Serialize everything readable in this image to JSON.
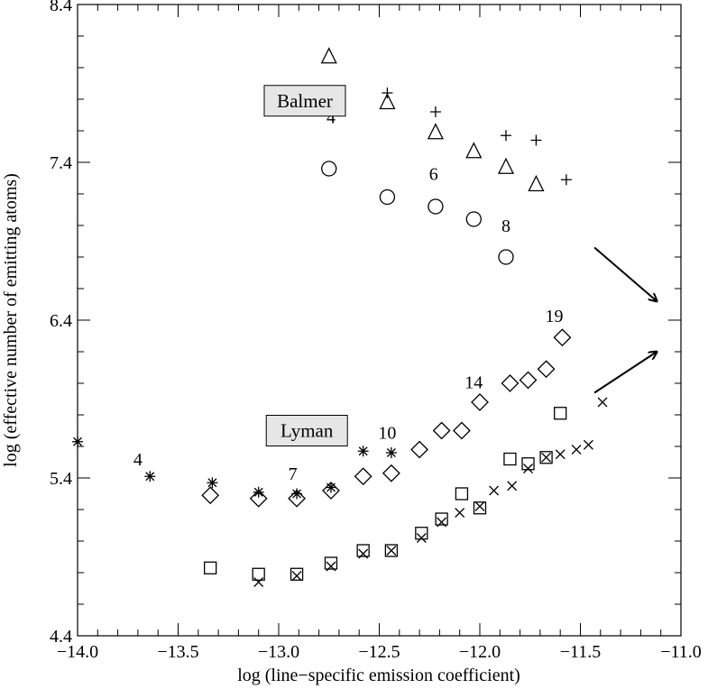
{
  "chart_data": {
    "type": "scatter",
    "title": "",
    "xlabel": "log (line−specific emission coefficient)",
    "ylabel": "log (effective number of emitting atoms)",
    "xlim": [
      -14.0,
      -11.0
    ],
    "ylim": [
      4.4,
      8.4
    ],
    "x_ticks": [
      -14.0,
      -13.5,
      -13.0,
      -12.5,
      -12.0,
      -11.5,
      -11.0
    ],
    "x_tick_labels": [
      "−14.0",
      "−13.5",
      "−13.0",
      "−12.5",
      "−12.0",
      "−11.5",
      "−11.0"
    ],
    "y_ticks": [
      4.4,
      5.4,
      6.4,
      7.4,
      8.4
    ],
    "y_tick_labels": [
      "4.4",
      "5.4",
      "6.4",
      "7.4",
      "8.4"
    ],
    "grid": false,
    "legend": "none",
    "boxed_labels": [
      {
        "text": "Balmer",
        "x": -12.87,
        "y": 7.79
      },
      {
        "text": "Lyman",
        "x": -12.86,
        "y": 5.7
      }
    ],
    "annotations": [
      {
        "text": "4",
        "x": -12.74,
        "y": 7.69
      },
      {
        "text": "6",
        "x": -12.23,
        "y": 7.33
      },
      {
        "text": "8",
        "x": -11.87,
        "y": 7.0
      },
      {
        "text": "4",
        "x": -13.7,
        "y": 5.52
      },
      {
        "text": "7",
        "x": -12.93,
        "y": 5.43
      },
      {
        "text": "10",
        "x": -12.46,
        "y": 5.69
      },
      {
        "text": "14",
        "x": -12.03,
        "y": 6.01
      },
      {
        "text": "19",
        "x": -11.63,
        "y": 6.43
      }
    ],
    "arrows": [
      {
        "from": [
          -11.43,
          6.86
        ],
        "to": [
          -11.12,
          6.52
        ]
      },
      {
        "from": [
          -11.43,
          5.94
        ],
        "to": [
          -11.12,
          6.2
        ]
      }
    ],
    "series": [
      {
        "marker": "triangle",
        "points": [
          [
            -12.75,
            8.07
          ],
          [
            -12.46,
            7.78
          ],
          [
            -12.22,
            7.59
          ],
          [
            -12.03,
            7.47
          ],
          [
            -11.87,
            7.37
          ],
          [
            -11.72,
            7.26
          ]
        ]
      },
      {
        "marker": "plus",
        "points": [
          [
            -12.46,
            7.84
          ],
          [
            -12.22,
            7.72
          ],
          [
            -11.87,
            7.57
          ],
          [
            -11.72,
            7.54
          ],
          [
            -11.57,
            7.29
          ]
        ]
      },
      {
        "marker": "circle",
        "points": [
          [
            -12.75,
            7.36
          ],
          [
            -12.46,
            7.18
          ],
          [
            -12.22,
            7.12
          ],
          [
            -12.03,
            7.04
          ],
          [
            -11.87,
            6.8
          ]
        ]
      },
      {
        "marker": "asterisk",
        "points": [
          [
            -14.0,
            5.63
          ],
          [
            -13.64,
            5.41
          ],
          [
            -13.33,
            5.37
          ],
          [
            -13.1,
            5.31
          ],
          [
            -12.91,
            5.3
          ],
          [
            -12.74,
            5.34
          ],
          [
            -12.58,
            5.57
          ],
          [
            -12.44,
            5.56
          ]
        ]
      },
      {
        "marker": "diamond",
        "points": [
          [
            -13.34,
            5.29
          ],
          [
            -13.1,
            5.27
          ],
          [
            -12.91,
            5.27
          ],
          [
            -12.74,
            5.32
          ],
          [
            -12.58,
            5.41
          ],
          [
            -12.44,
            5.43
          ],
          [
            -12.3,
            5.58
          ],
          [
            -12.19,
            5.7
          ],
          [
            -12.09,
            5.7
          ],
          [
            -12.0,
            5.88
          ],
          [
            -11.85,
            6.0
          ],
          [
            -11.76,
            6.02
          ],
          [
            -11.67,
            6.09
          ],
          [
            -11.59,
            6.29
          ]
        ]
      },
      {
        "marker": "square",
        "points": [
          [
            -13.34,
            4.83
          ],
          [
            -13.1,
            4.79
          ],
          [
            -12.91,
            4.79
          ],
          [
            -12.74,
            4.86
          ],
          [
            -12.58,
            4.94
          ],
          [
            -12.44,
            4.94
          ],
          [
            -12.29,
            5.05
          ],
          [
            -12.19,
            5.14
          ],
          [
            -12.09,
            5.3
          ],
          [
            -12.0,
            5.21
          ],
          [
            -11.85,
            5.52
          ],
          [
            -11.76,
            5.49
          ],
          [
            -11.67,
            5.53
          ],
          [
            -11.6,
            5.81
          ]
        ]
      },
      {
        "marker": "x",
        "points": [
          [
            -13.1,
            4.74
          ],
          [
            -12.91,
            4.78
          ],
          [
            -12.74,
            4.84
          ],
          [
            -12.58,
            4.92
          ],
          [
            -12.44,
            4.94
          ],
          [
            -12.29,
            5.02
          ],
          [
            -12.19,
            5.12
          ],
          [
            -12.1,
            5.18
          ],
          [
            -12.0,
            5.22
          ],
          [
            -11.93,
            5.32
          ],
          [
            -11.84,
            5.35
          ],
          [
            -11.76,
            5.46
          ],
          [
            -11.67,
            5.53
          ],
          [
            -11.6,
            5.55
          ],
          [
            -11.52,
            5.58
          ],
          [
            -11.46,
            5.61
          ],
          [
            -11.39,
            5.88
          ]
        ]
      }
    ]
  }
}
